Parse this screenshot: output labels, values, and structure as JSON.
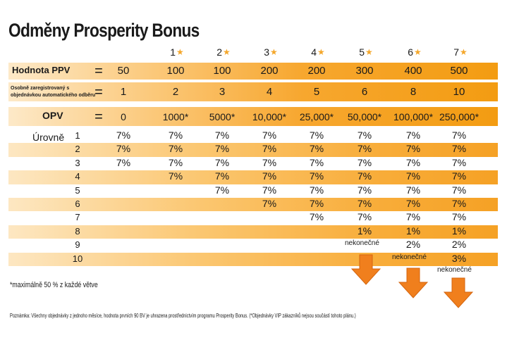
{
  "title": "Odměny Prosperity Bonus",
  "star_levels": [
    "1",
    "2",
    "3",
    "4",
    "5",
    "6",
    "7"
  ],
  "rows": {
    "ppv": {
      "label": "Hodnota PPV",
      "eq": "=",
      "values": [
        "50",
        "100",
        "100",
        "200",
        "200",
        "300",
        "400",
        "500"
      ]
    },
    "orders": {
      "label_line1": "Osobně zaregistrovaný s",
      "label_line2": "objednávkou automatického odběru",
      "eq": "=",
      "values": [
        "1",
        "2",
        "3",
        "4",
        "5",
        "6",
        "8",
        "10"
      ]
    },
    "opv": {
      "label": "OPV",
      "eq": "=",
      "values": [
        "0",
        "1000*",
        "5000*",
        "10,000*",
        "25,000*",
        "50,000*",
        "100,000*",
        "250,000*"
      ]
    }
  },
  "levels_label": "Úrovně",
  "levels": [
    {
      "level": "1",
      "values": [
        "7%",
        "7%",
        "7%",
        "7%",
        "7%",
        "7%",
        "7%",
        "7%"
      ]
    },
    {
      "level": "2",
      "values": [
        "7%",
        "7%",
        "7%",
        "7%",
        "7%",
        "7%",
        "7%",
        "7%"
      ]
    },
    {
      "level": "3",
      "values": [
        "7%",
        "7%",
        "7%",
        "7%",
        "7%",
        "7%",
        "7%",
        "7%"
      ]
    },
    {
      "level": "4",
      "values": [
        "",
        "7%",
        "7%",
        "7%",
        "7%",
        "7%",
        "7%",
        "7%"
      ]
    },
    {
      "level": "5",
      "values": [
        "",
        "",
        "7%",
        "7%",
        "7%",
        "7%",
        "7%",
        "7%"
      ]
    },
    {
      "level": "6",
      "values": [
        "",
        "",
        "",
        "7%",
        "7%",
        "7%",
        "7%",
        "7%"
      ]
    },
    {
      "level": "7",
      "values": [
        "",
        "",
        "",
        "",
        "7%",
        "7%",
        "7%",
        "7%"
      ]
    },
    {
      "level": "8",
      "values": [
        "",
        "",
        "",
        "",
        "",
        "1%",
        "1%",
        "1%"
      ]
    },
    {
      "level": "9",
      "values": [
        "",
        "",
        "",
        "",
        "",
        "",
        "2%",
        "2%"
      ]
    },
    {
      "level": "10",
      "values": [
        "",
        "",
        "",
        "",
        "",
        "",
        "",
        "3%"
      ]
    }
  ],
  "infinite_label": "nekonečné",
  "footnote": "*maximálně 50 % z každé větve",
  "note": "Poznámka: Všechny objednávky z jednoho měsíce, hodnota prvních 90 BV je uhrazena prostřednictvím programu Prosperity Bonus. (*Objednávky VIP zákazníků nejsou součástí tohoto plánu.)",
  "colors": {
    "accent": "#f39c12",
    "band_light": "#fde7c2",
    "arrow": "#f07f1d",
    "star": "#f4a72b"
  }
}
